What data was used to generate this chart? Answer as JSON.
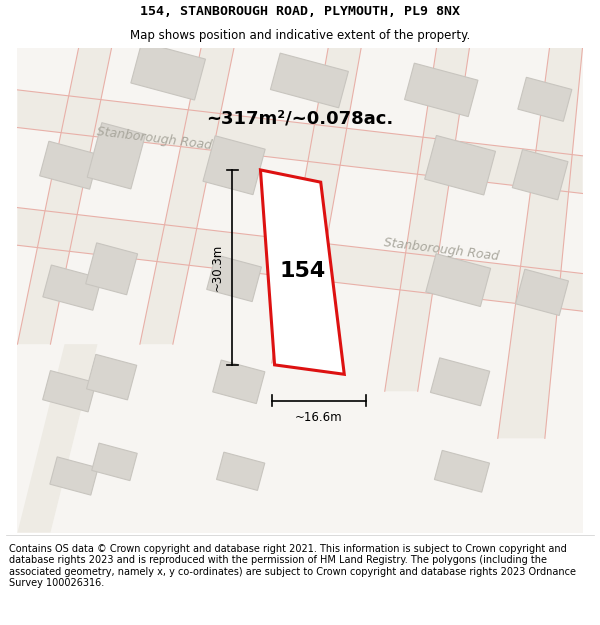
{
  "title_line1": "154, STANBOROUGH ROAD, PLYMOUTH, PL9 8NX",
  "title_line2": "Map shows position and indicative extent of the property.",
  "footer_text": "Contains OS data © Crown copyright and database right 2021. This information is subject to Crown copyright and database rights 2023 and is reproduced with the permission of HM Land Registry. The polygons (including the associated geometry, namely x, y co-ordinates) are subject to Crown copyright and database rights 2023 Ordnance Survey 100026316.",
  "area_text": "~317m²/~0.078ac.",
  "house_number": "154",
  "dim1_text": "~30.3m",
  "dim2_text": "~16.6m",
  "road_label1": "Stanborough Road",
  "road_label2": "Stanborough Road",
  "map_bg": "#f7f5f2",
  "road_fill": "#eeebe4",
  "road_line": "#e8b0a8",
  "parcel_fill": "#ffffff",
  "parcel_stroke": "#dd1111",
  "neighbor_fill": "#d8d5cf",
  "neighbor_edge": "#c8c5bf",
  "road_label_color": "#aaa89e",
  "title_fontsize": 9.5,
  "subtitle_fontsize": 8.5,
  "footer_fontsize": 7.0,
  "area_fontsize": 13,
  "house_fontsize": 16,
  "dim_fontsize": 8.5
}
